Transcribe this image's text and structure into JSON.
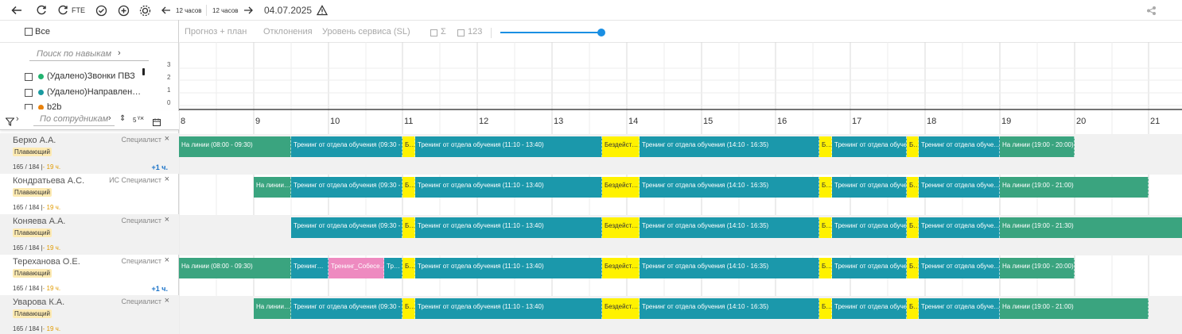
{
  "toolbar": {
    "fte": "FTE",
    "prev_period": "12 часов",
    "next_period": "12 часов",
    "date": "04.07.2025"
  },
  "left": {
    "select_all": "Все",
    "skill_search": "Поиск по навыкам",
    "skills": [
      {
        "label": "(Удалено)Звонки ПВЗ",
        "color": "#21b36f"
      },
      {
        "label": "(Удалено)Направлен…",
        "color": "#1a9aa0"
      },
      {
        "label": "b2b",
        "color": "#e8810c"
      }
    ],
    "employee_search": "По сотрудникам",
    "filter_count": "5"
  },
  "tabs": {
    "forecast": "Прогноз + план",
    "deviations": "Отклонения",
    "service_level": "Уровень сервиса (SL)",
    "sum": "Σ",
    "num": "123"
  },
  "mini_chart": {
    "y_ticks": [
      "3",
      "2",
      "1",
      "0"
    ]
  },
  "hours": [
    "8",
    "9",
    "10",
    "11",
    "12",
    "13",
    "14",
    "15",
    "16",
    "17",
    "18",
    "19",
    "20",
    "21"
  ],
  "employees": [
    {
      "name": "Берко А.А.",
      "role": "Специалист",
      "tag": "Плавающий",
      "hours": "165 / 184 |",
      "hours_warn": "- 19 ч.",
      "extra": "+1 ч."
    },
    {
      "name": "Кондратьева А.С.",
      "role": "ИС Специалист",
      "tag": "Плавающий",
      "hours": "165 / 184 |",
      "hours_warn": "- 19 ч.",
      "extra": ""
    },
    {
      "name": "Коняева А.А.",
      "role": "Специалист",
      "tag": "Плавающий",
      "hours": "165 / 184 |",
      "hours_warn": "- 19 ч.",
      "extra": ""
    },
    {
      "name": "Тереханова О.Е.",
      "role": "Специалист",
      "tag": "Плавающий",
      "hours": "165 / 184 |",
      "hours_warn": "- 19 ч.",
      "extra": "+1 ч."
    },
    {
      "name": "Уварова К.А.",
      "role": "Специалист",
      "tag": "Плавающий",
      "hours": "165 / 184 |",
      "hours_warn": "- 19 ч.",
      "extra": ""
    }
  ],
  "labels": {
    "online1": "На линии (08:00 - 09:30)",
    "online_short": "На линии…",
    "train1": "Тренинг от отдела обучения (09:30 - …",
    "train1_short": "Тренинг…",
    "train_sobes": "Тренинг_Собесе…",
    "tr_short": "Тр…",
    "b": "Б…",
    "train2": "Тренинг от отдела обучения (11:10 - 13:40)",
    "idle": "Бездейст…",
    "train3": "Тренинг от отдела обучения (14:10 - 16:35)",
    "train_obu": "Тренинг от отдела обуче…",
    "online_end1": "На линии (19:00 - 20:00)",
    "online_end2": "На линии (19:00 - 21:00)",
    "online_end3": "На линии (19:00 - 21:30)"
  },
  "colors": {
    "green": "#3aa47f",
    "teal": "#1b98ab",
    "yellow": "#fff200",
    "pink": "#ee8ac0",
    "accent": "#1a8fe3"
  }
}
